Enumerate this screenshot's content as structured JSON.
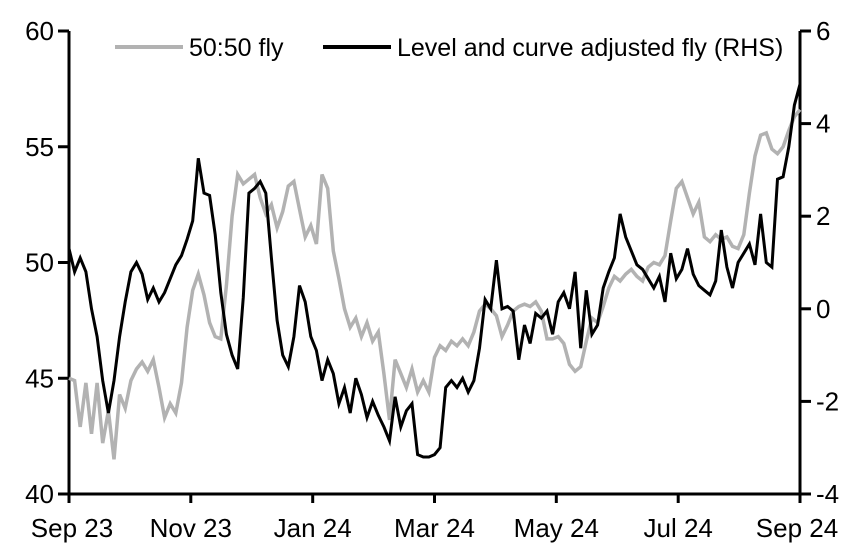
{
  "chart_data": {
    "type": "line",
    "title": "",
    "x_axis": {
      "tick_labels": [
        "Sep 23",
        "Nov 23",
        "Jan 24",
        "Mar 24",
        "May 24",
        "Jul 24",
        "Sep 24"
      ]
    },
    "left_axis": {
      "min": 40,
      "max": 60,
      "tick_labels": [
        "60",
        "55",
        "50",
        "45",
        "40"
      ]
    },
    "right_axis": {
      "min": -4,
      "max": 6,
      "tick_labels": [
        "6",
        "4",
        "2",
        "0",
        "-2",
        "-4"
      ]
    },
    "legend": [
      {
        "label": "50:50 fly",
        "color": "#b2b2b2"
      },
      {
        "label": "Level and curve adjusted fly (RHS)",
        "color": "#000000"
      }
    ],
    "grid": "off",
    "legend_position": "top",
    "series": [
      {
        "name": "50:50 fly",
        "axis": "left",
        "color": "#b2b2b2",
        "values": [
          45.0,
          44.9,
          42.9,
          44.8,
          42.6,
          44.8,
          42.2,
          43.6,
          41.5,
          44.3,
          43.7,
          44.9,
          45.4,
          45.7,
          45.3,
          45.8,
          44.6,
          43.3,
          43.9,
          43.5,
          44.8,
          47.2,
          48.8,
          49.5,
          48.6,
          47.4,
          46.8,
          46.7,
          49.0,
          52.0,
          53.8,
          53.4,
          53.6,
          53.8,
          52.8,
          52.1,
          52.5,
          51.5,
          52.2,
          53.3,
          53.5,
          52.3,
          51.1,
          51.6,
          50.8,
          53.8,
          53.2,
          50.5,
          49.3,
          48.0,
          47.2,
          47.6,
          46.8,
          47.4,
          46.6,
          47.0,
          45.2,
          43.2,
          45.8,
          45.2,
          44.6,
          45.4,
          44.4,
          44.9,
          44.4,
          45.9,
          46.4,
          46.2,
          46.6,
          46.4,
          46.7,
          46.4,
          47.0,
          47.9,
          48.2,
          48.0,
          47.7,
          46.8,
          47.3,
          47.9,
          48.1,
          48.2,
          48.1,
          48.3,
          47.9,
          46.7,
          46.7,
          46.8,
          46.5,
          45.6,
          45.3,
          45.5,
          46.6,
          47.6,
          47.4,
          48.1,
          48.9,
          49.4,
          49.2,
          49.5,
          49.7,
          49.4,
          49.2,
          49.8,
          50.0,
          49.9,
          50.3,
          51.8,
          53.2,
          53.5,
          52.8,
          52.1,
          52.6,
          51.1,
          50.9,
          51.2,
          51.0,
          51.1,
          50.7,
          50.6,
          51.2,
          53.0,
          54.6,
          55.5,
          55.6,
          54.9,
          54.7,
          55.0,
          55.7,
          56.3,
          56.6
        ]
      },
      {
        "name": "Level and curve adjusted fly (RHS)",
        "axis": "right",
        "color": "#000000",
        "values": [
          1.3,
          0.8,
          1.1,
          0.8,
          0.0,
          -0.6,
          -1.55,
          -2.25,
          -1.55,
          -0.6,
          0.15,
          0.8,
          1.0,
          0.75,
          0.2,
          0.45,
          0.15,
          0.35,
          0.65,
          0.95,
          1.15,
          1.5,
          1.9,
          3.25,
          2.5,
          2.45,
          1.6,
          0.35,
          -0.55,
          -1.0,
          -1.3,
          0.25,
          2.5,
          2.6,
          2.75,
          2.5,
          1.1,
          -0.25,
          -1.0,
          -1.25,
          -0.6,
          0.5,
          0.15,
          -0.6,
          -0.9,
          -1.55,
          -1.1,
          -1.4,
          -2.05,
          -1.7,
          -2.25,
          -1.5,
          -1.85,
          -2.35,
          -2.0,
          -2.3,
          -2.55,
          -2.85,
          -1.9,
          -2.55,
          -2.2,
          -2.05,
          -3.15,
          -3.2,
          -3.2,
          -3.15,
          -3.0,
          -1.7,
          -1.55,
          -1.7,
          -1.5,
          -1.8,
          -1.55,
          -0.85,
          0.2,
          0.0,
          1.05,
          0.0,
          0.05,
          -0.05,
          -1.1,
          -0.35,
          -0.75,
          -0.1,
          -0.2,
          -0.05,
          -0.55,
          0.15,
          0.35,
          0.0,
          0.8,
          -0.85,
          0.4,
          -0.55,
          -0.35,
          0.45,
          0.8,
          1.1,
          2.05,
          1.55,
          1.25,
          0.95,
          0.85,
          0.65,
          0.45,
          0.7,
          0.15,
          1.2,
          0.65,
          0.85,
          1.3,
          0.75,
          0.5,
          0.4,
          0.3,
          0.6,
          1.7,
          0.9,
          0.45,
          1.0,
          1.2,
          1.4,
          0.95,
          2.05,
          1.0,
          0.9,
          2.8,
          2.85,
          3.5,
          4.4,
          4.85
        ]
      }
    ]
  }
}
